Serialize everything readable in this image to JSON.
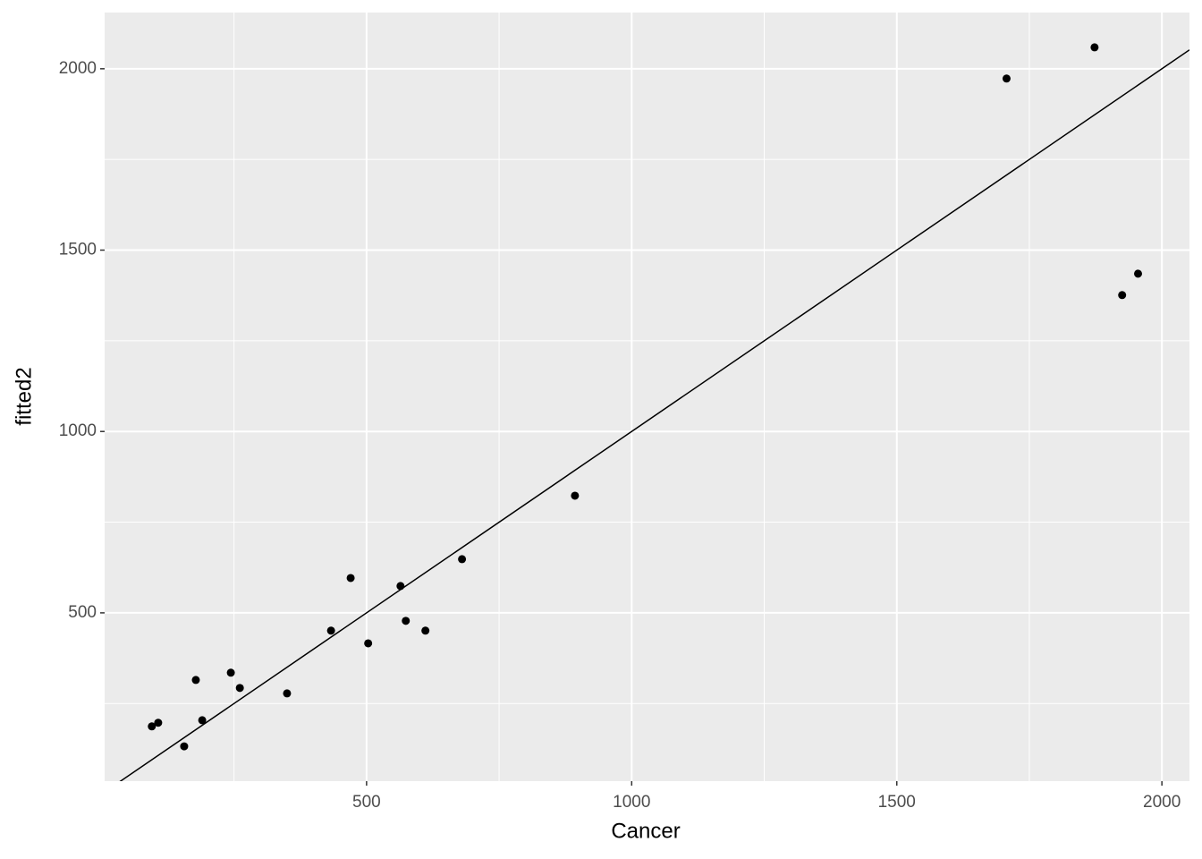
{
  "chart_data": {
    "type": "scatter",
    "x_label": "Cancer",
    "y_label": "fitted2",
    "x": [
      95,
      107,
      156,
      178,
      190,
      244,
      261,
      350,
      433,
      470,
      503,
      564,
      574,
      611,
      680,
      893,
      1707,
      1873,
      1925,
      1955
    ],
    "values": [
      187,
      197,
      132,
      315,
      204,
      335,
      293,
      278,
      451,
      596,
      416,
      574,
      478,
      451,
      648,
      823,
      1973,
      2059,
      1376,
      1435
    ],
    "color": "#000000",
    "abline": {
      "intercept": 0,
      "slope": 1
    },
    "xlim": [
      6,
      2052
    ],
    "ylim": [
      36,
      2155
    ],
    "xticks": [
      500,
      1000,
      1500,
      2000
    ],
    "yticks": [
      500,
      1000,
      1500,
      2000
    ],
    "grid": true
  }
}
